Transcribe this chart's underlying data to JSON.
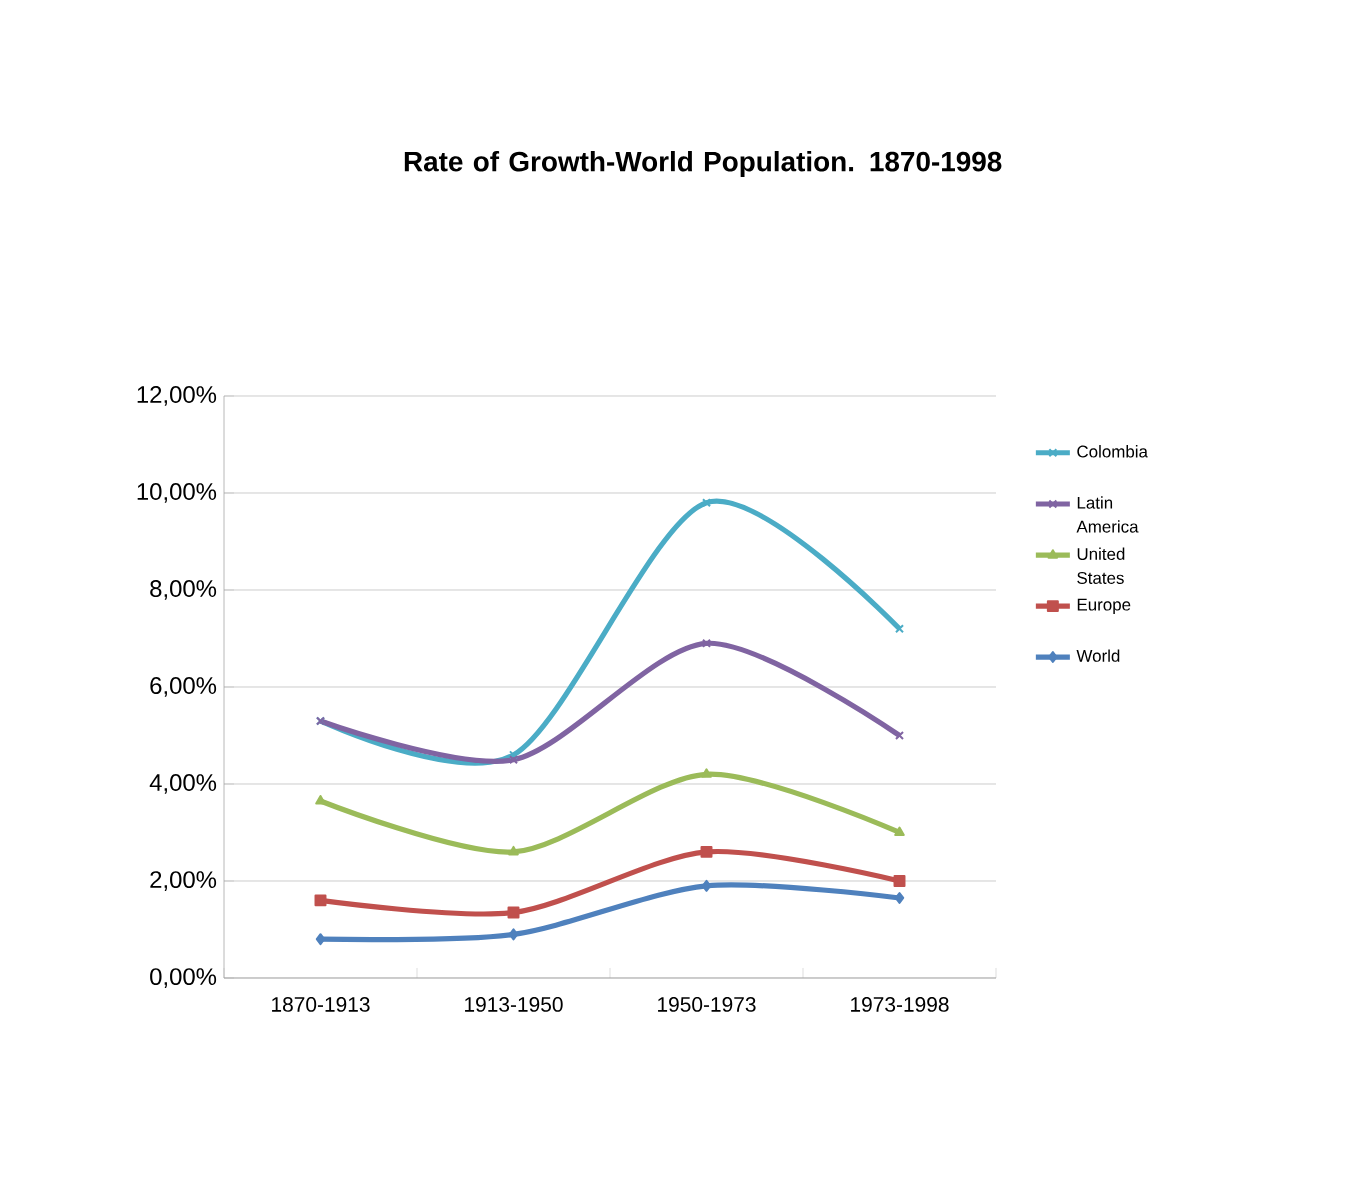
{
  "chart_data": {
    "type": "line",
    "title": "Rate of Growth-World Population. 1870-1998",
    "categories": [
      "1870-1913",
      "1913-1950",
      "1950-1973",
      "1973-1998"
    ],
    "series": [
      {
        "name": "Colombia",
        "color": "#4bacc6",
        "marker": "cross",
        "values": [
          5.3,
          4.6,
          9.8,
          7.2
        ]
      },
      {
        "name": "Latin America",
        "color": "#8064a2",
        "marker": "cross",
        "values": [
          5.3,
          4.5,
          6.9,
          5.0
        ]
      },
      {
        "name": "United States",
        "color": "#9bbb59",
        "marker": "triangle",
        "values": [
          3.65,
          2.6,
          4.2,
          3.0
        ]
      },
      {
        "name": "Europe",
        "color": "#c0504d",
        "marker": "square",
        "values": [
          1.6,
          1.35,
          2.6,
          2.0
        ]
      },
      {
        "name": "World",
        "color": "#4f81bd",
        "marker": "diamond",
        "values": [
          0.8,
          0.9,
          1.9,
          1.65
        ]
      }
    ],
    "ylim": [
      0,
      12
    ],
    "yticks": [
      {
        "value": 0,
        "label": "0,00%"
      },
      {
        "value": 2,
        "label": "2,00%"
      },
      {
        "value": 4,
        "label": "4,00%"
      },
      {
        "value": 6,
        "label": "6,00%"
      },
      {
        "value": 8,
        "label": "8,00%"
      },
      {
        "value": 10,
        "label": "10,00%"
      },
      {
        "value": 12,
        "label": "12,00%"
      }
    ],
    "grid": "y",
    "legend": "right",
    "line_style": "solid"
  }
}
